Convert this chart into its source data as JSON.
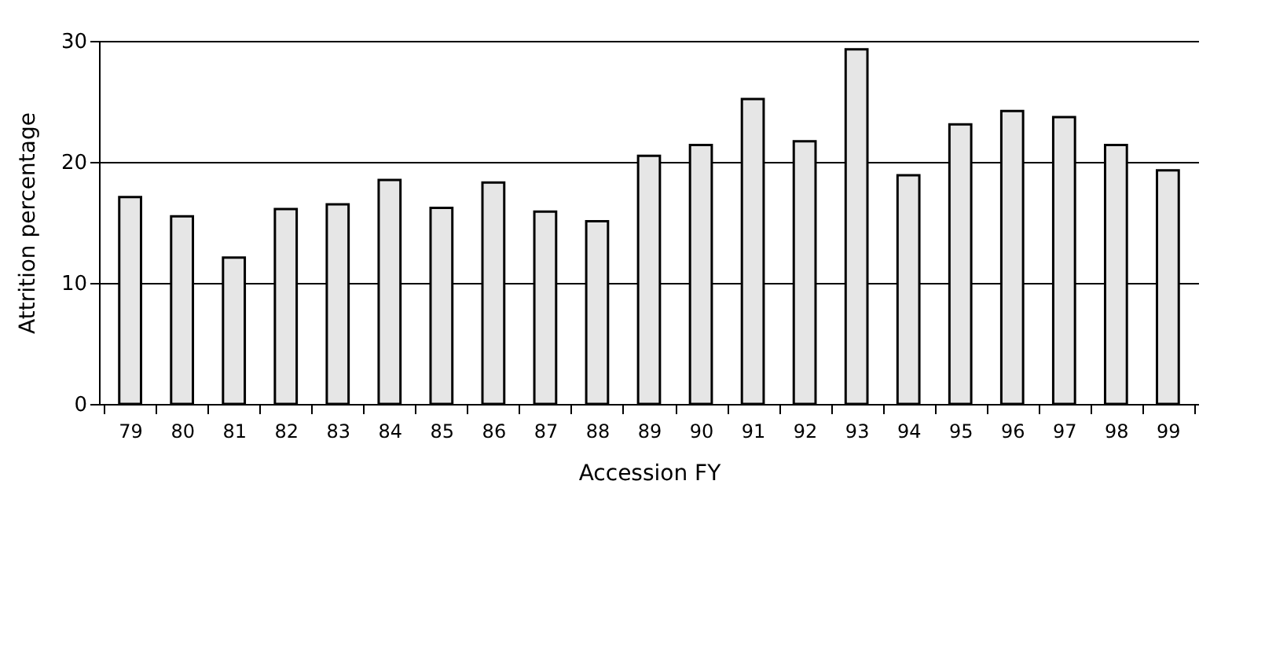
{
  "chart_data": {
    "type": "bar",
    "xlabel": "Accession FY",
    "ylabel": "Attrition percentage",
    "categories": [
      "79",
      "80",
      "81",
      "82",
      "83",
      "84",
      "85",
      "86",
      "87",
      "88",
      "89",
      "90",
      "91",
      "92",
      "93",
      "94",
      "95",
      "96",
      "97",
      "98",
      "99"
    ],
    "values": [
      17.1,
      15.5,
      12.1,
      16.1,
      16.5,
      18.5,
      16.2,
      18.3,
      15.9,
      15.1,
      20.5,
      21.4,
      25.2,
      21.7,
      29.3,
      18.9,
      23.1,
      24.2,
      23.7,
      21.4,
      19.3
    ],
    "color": "#e6e6e6",
    "ylim": [
      0,
      30
    ],
    "yticks": [
      0,
      10,
      20,
      30
    ],
    "grid": "y"
  }
}
